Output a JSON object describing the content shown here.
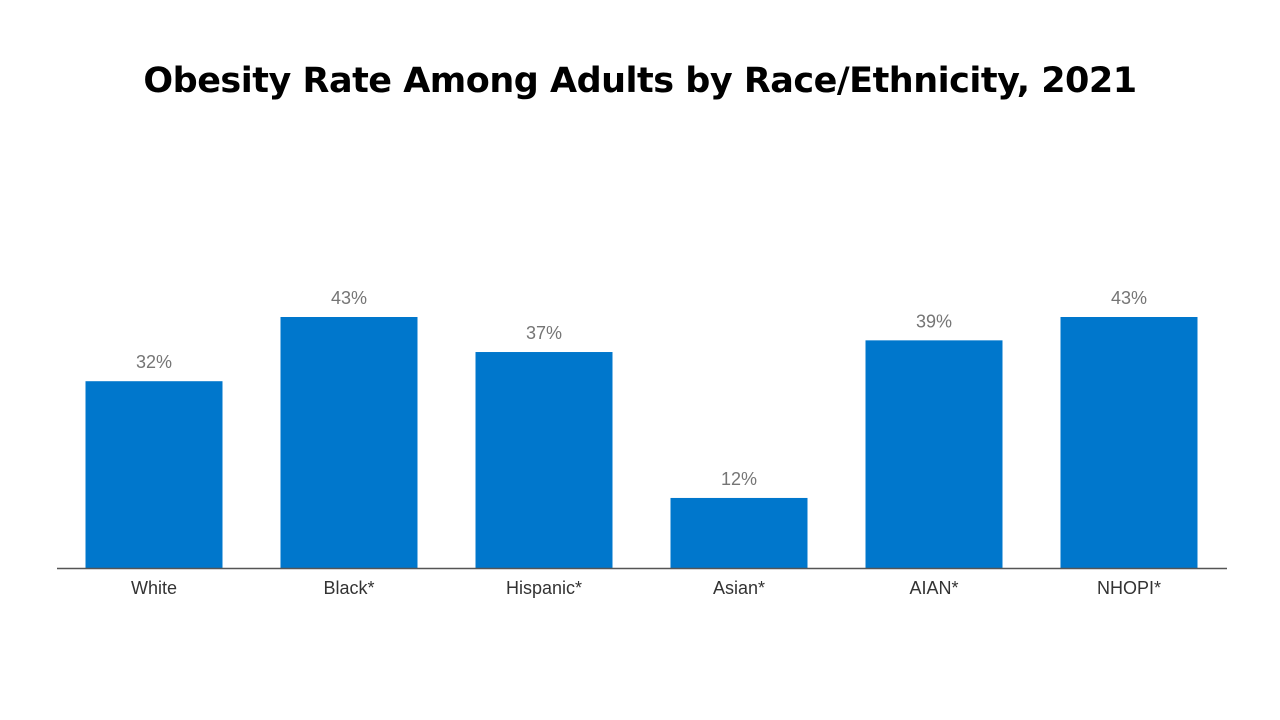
{
  "chart_data": {
    "type": "bar",
    "title": "Obesity Rate Among Adults by Race/Ethnicity, 2021",
    "categories": [
      "White",
      "Black*",
      "Hispanic*",
      "Asian*",
      "AIAN*",
      "NHOPI*"
    ],
    "values": [
      32,
      43,
      37,
      12,
      39,
      43
    ],
    "data_labels": [
      "32%",
      "43%",
      "37%",
      "12%",
      "39%",
      "43%"
    ],
    "xlabel": "",
    "ylabel": "",
    "ylim": [
      0,
      43
    ],
    "grid": false,
    "legend": "none",
    "colors": {
      "bar": "#0077CC",
      "axis": "#555555",
      "value_label": "#757575",
      "tick_label": "#333333",
      "title": "#000000"
    }
  }
}
